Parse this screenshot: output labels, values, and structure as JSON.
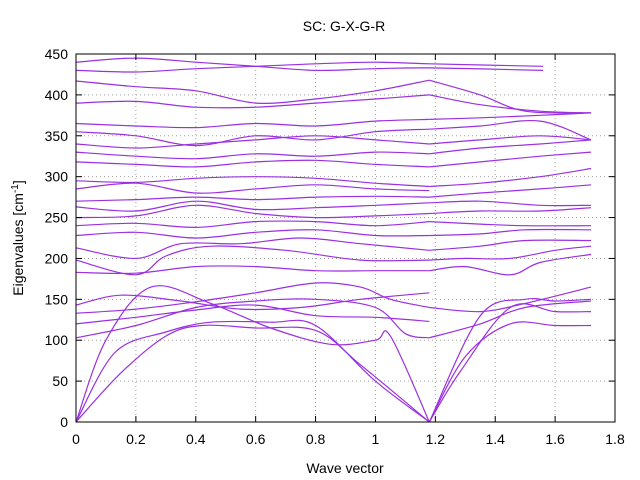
{
  "chart_data": {
    "type": "line",
    "title": "SC: G-X-G-R",
    "xlabel": "Wave vector",
    "ylabel_main": "Eigenvalues [cm",
    "ylabel_sup": "-1",
    "ylabel_end": "]",
    "xlim": [
      0,
      1.8
    ],
    "ylim": [
      0,
      450
    ],
    "xticks": [
      "0",
      "0.2",
      "0.4",
      "0.6",
      "0.8",
      "1",
      "1.2",
      "1.4",
      "1.6",
      "1.8"
    ],
    "yticks": [
      "0",
      "50",
      "100",
      "150",
      "200",
      "250",
      "300",
      "350",
      "400",
      "450"
    ],
    "grid": true,
    "line_color": "#9b30e0",
    "segments": [
      {
        "x_start": 0,
        "x_end": 1.18,
        "direction": "forward"
      },
      {
        "x_start": 1.18,
        "x_end": 1.72,
        "direction": "forward"
      }
    ],
    "series": [
      {
        "points": [
          [
            0,
            0
          ],
          [
            0.15,
            60
          ],
          [
            0.3,
            105
          ],
          [
            0.42,
            118
          ],
          [
            0.6,
            115
          ],
          [
            0.8,
            112
          ],
          [
            0.95,
            70
          ],
          [
            1.18,
            0
          ]
        ]
      },
      {
        "points": [
          [
            0,
            0
          ],
          [
            0.13,
            85
          ],
          [
            0.3,
            110
          ],
          [
            0.45,
            122
          ],
          [
            0.65,
            122
          ],
          [
            0.8,
            118
          ],
          [
            1.0,
            50
          ],
          [
            1.18,
            0
          ]
        ]
      },
      {
        "points": [
          [
            0,
            0
          ],
          [
            0.1,
            100
          ],
          [
            0.25,
            165
          ],
          [
            0.45,
            145
          ],
          [
            0.65,
            115
          ],
          [
            0.85,
            95
          ],
          [
            1.0,
            100
          ],
          [
            1.05,
            105
          ],
          [
            1.18,
            0
          ]
        ]
      },
      {
        "points": [
          [
            0,
            103
          ],
          [
            0.2,
            118
          ],
          [
            0.4,
            140
          ],
          [
            0.6,
            148
          ],
          [
            0.8,
            150
          ],
          [
            1.0,
            140
          ],
          [
            1.1,
            108
          ],
          [
            1.18,
            103
          ]
        ]
      },
      {
        "points": [
          [
            0,
            120
          ],
          [
            0.2,
            128
          ],
          [
            0.4,
            137
          ],
          [
            0.6,
            143
          ],
          [
            0.8,
            130
          ],
          [
            1.0,
            128
          ],
          [
            1.18,
            123
          ]
        ]
      },
      {
        "points": [
          [
            0,
            133
          ],
          [
            0.2,
            138
          ],
          [
            0.4,
            147
          ],
          [
            0.6,
            158
          ],
          [
            0.8,
            170
          ],
          [
            0.95,
            165
          ],
          [
            1.05,
            150
          ],
          [
            1.18,
            140
          ]
        ]
      },
      {
        "points": [
          [
            0,
            143
          ],
          [
            0.15,
            155
          ],
          [
            0.35,
            148
          ],
          [
            0.55,
            138
          ],
          [
            0.75,
            140
          ],
          [
            0.95,
            150
          ],
          [
            1.18,
            158
          ]
        ]
      },
      {
        "points": [
          [
            0,
            183
          ],
          [
            0.2,
            182
          ],
          [
            0.4,
            190
          ],
          [
            0.6,
            190
          ],
          [
            0.8,
            185
          ],
          [
            1.0,
            185
          ],
          [
            1.18,
            185
          ]
        ]
      },
      {
        "points": [
          [
            0,
            198
          ],
          [
            0.2,
            180
          ],
          [
            0.3,
            203
          ],
          [
            0.45,
            215
          ],
          [
            0.7,
            210
          ],
          [
            0.95,
            198
          ],
          [
            1.18,
            198
          ]
        ]
      },
      {
        "points": [
          [
            0,
            213
          ],
          [
            0.2,
            200
          ],
          [
            0.35,
            218
          ],
          [
            0.55,
            218
          ],
          [
            0.75,
            225
          ],
          [
            0.95,
            218
          ],
          [
            1.18,
            210
          ]
        ]
      },
      {
        "points": [
          [
            0,
            228
          ],
          [
            0.2,
            232
          ],
          [
            0.4,
            225
          ],
          [
            0.6,
            232
          ],
          [
            0.8,
            235
          ],
          [
            1.0,
            228
          ],
          [
            1.18,
            228
          ]
        ]
      },
      {
        "points": [
          [
            0,
            240
          ],
          [
            0.2,
            243
          ],
          [
            0.4,
            238
          ],
          [
            0.6,
            245
          ],
          [
            0.8,
            245
          ],
          [
            1.0,
            240
          ],
          [
            1.18,
            245
          ]
        ]
      },
      {
        "points": [
          [
            0,
            250
          ],
          [
            0.2,
            252
          ],
          [
            0.4,
            265
          ],
          [
            0.6,
            255
          ],
          [
            0.8,
            250
          ],
          [
            1.0,
            252
          ],
          [
            1.18,
            255
          ]
        ]
      },
      {
        "points": [
          [
            0,
            263
          ],
          [
            0.2,
            258
          ],
          [
            0.4,
            270
          ],
          [
            0.6,
            260
          ],
          [
            0.8,
            262
          ],
          [
            1.0,
            265
          ],
          [
            1.18,
            268
          ]
        ]
      },
      {
        "points": [
          [
            0,
            270
          ],
          [
            0.2,
            272
          ],
          [
            0.4,
            275
          ],
          [
            0.6,
            272
          ],
          [
            0.8,
            275
          ],
          [
            1.0,
            276
          ],
          [
            1.18,
            275
          ]
        ]
      },
      {
        "points": [
          [
            0,
            285
          ],
          [
            0.2,
            292
          ],
          [
            0.4,
            280
          ],
          [
            0.6,
            285
          ],
          [
            0.8,
            290
          ],
          [
            1.0,
            285
          ],
          [
            1.18,
            283
          ]
        ]
      },
      {
        "points": [
          [
            0,
            295
          ],
          [
            0.2,
            293
          ],
          [
            0.4,
            298
          ],
          [
            0.6,
            300
          ],
          [
            0.8,
            298
          ],
          [
            1.0,
            292
          ],
          [
            1.18,
            288
          ]
        ]
      },
      {
        "points": [
          [
            0,
            318
          ],
          [
            0.2,
            315
          ],
          [
            0.4,
            312
          ],
          [
            0.6,
            318
          ],
          [
            0.8,
            320
          ],
          [
            1.0,
            315
          ],
          [
            1.18,
            312
          ]
        ]
      },
      {
        "points": [
          [
            0,
            330
          ],
          [
            0.2,
            325
          ],
          [
            0.4,
            322
          ],
          [
            0.6,
            328
          ],
          [
            0.8,
            325
          ],
          [
            1.0,
            330
          ],
          [
            1.18,
            328
          ]
        ]
      },
      {
        "points": [
          [
            0,
            340
          ],
          [
            0.2,
            335
          ],
          [
            0.4,
            340
          ],
          [
            0.6,
            345
          ],
          [
            0.8,
            350
          ],
          [
            1.0,
            345
          ],
          [
            1.18,
            340
          ]
        ]
      },
      {
        "points": [
          [
            0,
            355
          ],
          [
            0.2,
            350
          ],
          [
            0.4,
            338
          ],
          [
            0.6,
            350
          ],
          [
            0.8,
            345
          ],
          [
            1.0,
            355
          ],
          [
            1.18,
            358
          ]
        ]
      },
      {
        "points": [
          [
            0,
            365
          ],
          [
            0.2,
            362
          ],
          [
            0.4,
            360
          ],
          [
            0.6,
            365
          ],
          [
            0.8,
            362
          ],
          [
            1.0,
            368
          ],
          [
            1.18,
            370
          ]
        ]
      },
      {
        "points": [
          [
            0,
            390
          ],
          [
            0.2,
            392
          ],
          [
            0.4,
            385
          ],
          [
            0.6,
            385
          ],
          [
            0.8,
            390
          ],
          [
            1.0,
            395
          ],
          [
            1.18,
            400
          ]
        ]
      },
      {
        "points": [
          [
            0,
            417
          ],
          [
            0.2,
            410
          ],
          [
            0.4,
            405
          ],
          [
            0.6,
            390
          ],
          [
            0.8,
            395
          ],
          [
            1.0,
            405
          ],
          [
            1.18,
            418
          ]
        ]
      },
      {
        "points": [
          [
            0,
            440
          ],
          [
            0.2,
            445
          ],
          [
            0.4,
            440
          ],
          [
            0.6,
            435
          ],
          [
            0.8,
            430
          ],
          [
            1.0,
            432
          ],
          [
            1.18,
            433
          ],
          [
            1.56,
            430
          ]
        ]
      },
      {
        "points": [
          [
            0,
            430
          ],
          [
            0.2,
            428
          ],
          [
            0.4,
            432
          ],
          [
            0.6,
            435
          ],
          [
            0.8,
            438
          ],
          [
            1.0,
            440
          ],
          [
            1.18,
            438
          ],
          [
            1.56,
            435
          ]
        ]
      },
      {
        "points": [
          [
            1.18,
            0
          ],
          [
            1.3,
            80
          ],
          [
            1.45,
            120
          ],
          [
            1.6,
            118
          ],
          [
            1.72,
            118
          ]
        ]
      },
      {
        "points": [
          [
            1.18,
            0
          ],
          [
            1.28,
            60
          ],
          [
            1.45,
            140
          ],
          [
            1.6,
            135
          ],
          [
            1.72,
            135
          ]
        ]
      },
      {
        "points": [
          [
            1.18,
            0
          ],
          [
            1.35,
            130
          ],
          [
            1.5,
            150
          ],
          [
            1.6,
            148
          ],
          [
            1.72,
            150
          ]
        ]
      },
      {
        "points": [
          [
            1.18,
            103
          ],
          [
            1.35,
            120
          ],
          [
            1.5,
            140
          ],
          [
            1.72,
            148
          ]
        ]
      },
      {
        "points": [
          [
            1.18,
            140
          ],
          [
            1.35,
            135
          ],
          [
            1.5,
            145
          ],
          [
            1.72,
            165
          ]
        ]
      },
      {
        "points": [
          [
            1.18,
            185
          ],
          [
            1.3,
            190
          ],
          [
            1.45,
            180
          ],
          [
            1.55,
            195
          ],
          [
            1.72,
            205
          ]
        ]
      },
      {
        "points": [
          [
            1.18,
            198
          ],
          [
            1.3,
            200
          ],
          [
            1.45,
            200
          ],
          [
            1.6,
            210
          ],
          [
            1.72,
            215
          ]
        ]
      },
      {
        "points": [
          [
            1.18,
            210
          ],
          [
            1.35,
            215
          ],
          [
            1.5,
            222
          ],
          [
            1.72,
            222
          ]
        ]
      },
      {
        "points": [
          [
            1.18,
            228
          ],
          [
            1.35,
            230
          ],
          [
            1.5,
            235
          ],
          [
            1.72,
            235
          ]
        ]
      },
      {
        "points": [
          [
            1.18,
            245
          ],
          [
            1.35,
            242
          ],
          [
            1.5,
            240
          ],
          [
            1.72,
            240
          ]
        ]
      },
      {
        "points": [
          [
            1.18,
            255
          ],
          [
            1.35,
            258
          ],
          [
            1.55,
            258
          ],
          [
            1.72,
            262
          ]
        ]
      },
      {
        "points": [
          [
            1.18,
            268
          ],
          [
            1.35,
            270
          ],
          [
            1.55,
            265
          ],
          [
            1.72,
            265
          ]
        ]
      },
      {
        "points": [
          [
            1.18,
            275
          ],
          [
            1.35,
            280
          ],
          [
            1.55,
            285
          ],
          [
            1.72,
            290
          ]
        ]
      },
      {
        "points": [
          [
            1.18,
            288
          ],
          [
            1.35,
            292
          ],
          [
            1.55,
            300
          ],
          [
            1.72,
            310
          ]
        ]
      },
      {
        "points": [
          [
            1.18,
            312
          ],
          [
            1.35,
            318
          ],
          [
            1.55,
            325
          ],
          [
            1.72,
            330
          ]
        ]
      },
      {
        "points": [
          [
            1.18,
            328
          ],
          [
            1.35,
            335
          ],
          [
            1.55,
            340
          ],
          [
            1.72,
            345
          ]
        ]
      },
      {
        "points": [
          [
            1.18,
            340
          ],
          [
            1.35,
            345
          ],
          [
            1.55,
            350
          ],
          [
            1.72,
            345
          ]
        ]
      },
      {
        "points": [
          [
            1.18,
            358
          ],
          [
            1.35,
            362
          ],
          [
            1.55,
            368
          ],
          [
            1.72,
            345
          ]
        ]
      },
      {
        "points": [
          [
            1.18,
            370
          ],
          [
            1.35,
            372
          ],
          [
            1.55,
            375
          ],
          [
            1.72,
            378
          ]
        ]
      },
      {
        "points": [
          [
            1.18,
            400
          ],
          [
            1.35,
            388
          ],
          [
            1.55,
            380
          ],
          [
            1.72,
            378
          ]
        ]
      },
      {
        "points": [
          [
            1.18,
            418
          ],
          [
            1.35,
            400
          ],
          [
            1.5,
            380
          ],
          [
            1.72,
            378
          ]
        ]
      }
    ]
  }
}
